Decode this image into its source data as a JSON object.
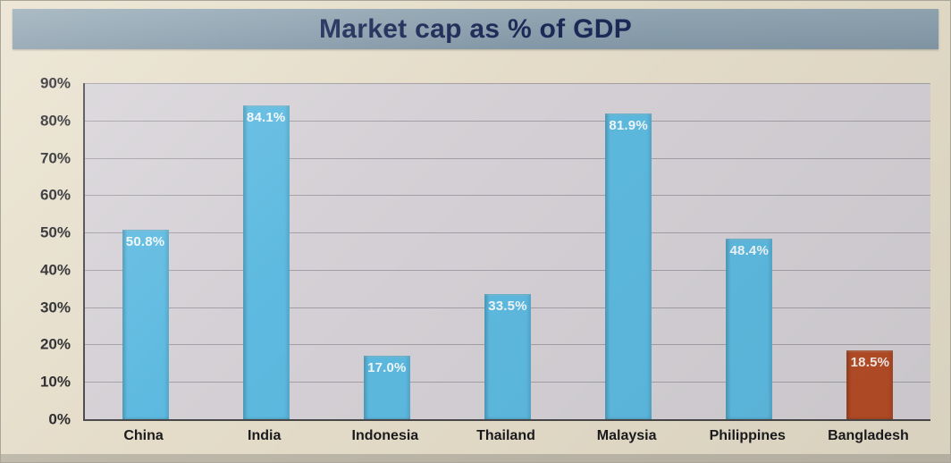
{
  "chart_data": {
    "type": "bar",
    "title": "Market cap as % of GDP",
    "categories": [
      "China",
      "India",
      "Indonesia",
      "Thailand",
      "Malaysia",
      "Philippines",
      "Bangladesh"
    ],
    "values": [
      50.8,
      84.1,
      17.0,
      33.5,
      81.9,
      48.4,
      18.5
    ],
    "value_labels": [
      "50.8%",
      "84.1%",
      "17.0%",
      "33.5%",
      "81.9%",
      "48.4%",
      "18.5%"
    ],
    "xlabel": "",
    "ylabel": "",
    "ylim": [
      0,
      90
    ],
    "ytick_step": 10,
    "ytick_labels": [
      "0%",
      "10%",
      "20%",
      "30%",
      "40%",
      "50%",
      "60%",
      "70%",
      "80%",
      "90%"
    ],
    "grid": true,
    "legend": false,
    "bar_colors": [
      "#5fbde4",
      "#5fbde4",
      "#5fbde4",
      "#5fbde4",
      "#5fbde4",
      "#5fbde4",
      "#b94e27"
    ],
    "colors": {
      "bar_default": "#5fbde4",
      "bar_highlight": "#b94e27",
      "plot_bg": "#d8d4d9",
      "paper_bg": "#e9e1cd",
      "title_bar_bg": "#8ca1b0",
      "title_text": "#1c2a58",
      "gridline": "#a6a1aa",
      "axis_text": "#26262a",
      "bar_value_text": "#ffffff"
    }
  }
}
